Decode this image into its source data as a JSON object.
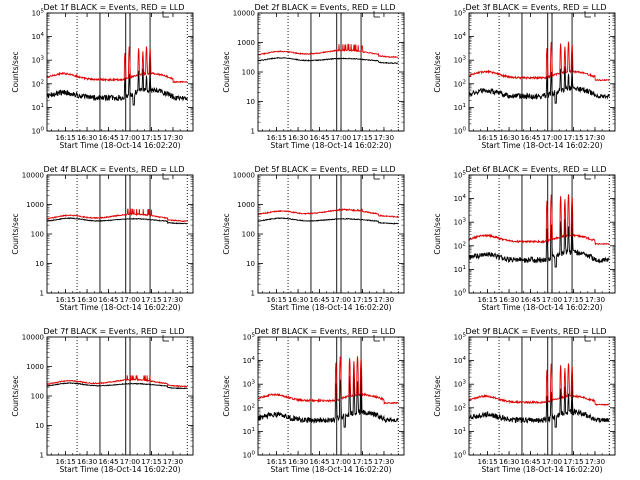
{
  "colors": {
    "events": "#000000",
    "lld": "#dd0000",
    "frame": "#000000",
    "background": "#ffffff"
  },
  "chart_data": [
    {
      "type": "line",
      "title": "Det 1f BLACK = Events, RED = LLD",
      "xlabel": "Start Time (18-Oct-14 16:02:20)",
      "ylabel": "Counts/sec",
      "xlim": [
        "16:02",
        "17:44"
      ],
      "xticks": [
        "16:15",
        "16:30",
        "16:45",
        "17:00",
        "17:15",
        "17:30"
      ],
      "yscale": "log",
      "ylim": [
        1,
        100000
      ],
      "yticks": [
        "10^0",
        "10^1",
        "10^2",
        "10^3",
        "10^4",
        "10^5"
      ],
      "profile": "spiky",
      "lld_baseline": 150,
      "lld_peak": 5000,
      "events_baseline": 25,
      "events_peak": 500,
      "solid_markers": [
        "16:39",
        "16:57",
        "17:00",
        "17:14"
      ],
      "dotted_markers": [
        "16:23",
        "17:40"
      ],
      "series": [
        {
          "name": "BLACK = Events",
          "color": "#000000"
        },
        {
          "name": "RED = LLD",
          "color": "#dd0000"
        }
      ]
    },
    {
      "type": "line",
      "title": "Det 2f BLACK = Events, RED = LLD",
      "xlabel": "Start Time (18-Oct-14 16:02:20)",
      "ylabel": "Counts/sec",
      "xlim": [
        "16:02",
        "17:44"
      ],
      "xticks": [
        "16:15",
        "16:30",
        "16:45",
        "17:00",
        "17:15",
        "17:30"
      ],
      "yscale": "log",
      "ylim": [
        1,
        10000
      ],
      "yticks": [
        "1",
        "10",
        "100",
        "1000",
        "10000"
      ],
      "profile": "smooth",
      "lld_baseline": 350,
      "lld_peak": 1100,
      "events_baseline": 220,
      "events_peak": 400,
      "solid_markers": [
        "16:39",
        "16:57",
        "17:00",
        "17:14"
      ],
      "dotted_markers": [
        "16:23",
        "17:40"
      ],
      "series": [
        {
          "name": "BLACK = Events",
          "color": "#000000"
        },
        {
          "name": "RED = LLD",
          "color": "#dd0000"
        }
      ]
    },
    {
      "type": "line",
      "title": "Det 3f BLACK = Events, RED = LLD",
      "xlabel": "Start Time (18-Oct-14 16:02:20)",
      "ylabel": "Counts/sec",
      "xlim": [
        "16:02",
        "17:44"
      ],
      "xticks": [
        "16:15",
        "16:30",
        "16:45",
        "17:00",
        "17:15",
        "17:30"
      ],
      "yscale": "log",
      "ylim": [
        1,
        100000
      ],
      "yticks": [
        "10^0",
        "10^1",
        "10^2",
        "10^3",
        "10^4",
        "10^5"
      ],
      "profile": "spiky",
      "lld_baseline": 180,
      "lld_peak": 8000,
      "events_baseline": 30,
      "events_peak": 600,
      "solid_markers": [
        "16:39",
        "16:57",
        "17:00",
        "17:14"
      ],
      "dotted_markers": [
        "16:23",
        "17:40"
      ],
      "series": [
        {
          "name": "BLACK = Events",
          "color": "#000000"
        },
        {
          "name": "RED = LLD",
          "color": "#dd0000"
        }
      ]
    },
    {
      "type": "line",
      "title": "Det 4f BLACK = Events, RED = LLD",
      "xlabel": "Start Time (18-Oct-14 16:02:20)",
      "ylabel": "Counts/sec",
      "xlim": [
        "16:02",
        "17:44"
      ],
      "xticks": [
        "16:15",
        "16:30",
        "16:45",
        "17:00",
        "17:15",
        "17:30"
      ],
      "yscale": "log",
      "ylim": [
        1,
        10000
      ],
      "yticks": [
        "1",
        "10",
        "100",
        "1000",
        "10000"
      ],
      "profile": "smooth",
      "lld_baseline": 300,
      "lld_peak": 700,
      "events_baseline": 250,
      "events_peak": 400,
      "solid_markers": [
        "16:39",
        "16:57",
        "17:00",
        "17:14"
      ],
      "dotted_markers": [
        "16:23",
        "17:40"
      ],
      "series": [
        {
          "name": "BLACK = Events",
          "color": "#000000"
        },
        {
          "name": "RED = LLD",
          "color": "#dd0000"
        }
      ]
    },
    {
      "type": "line",
      "title": "Det 5f BLACK = Events, RED = LLD",
      "xlabel": "Start Time (18-Oct-14 16:02:20)",
      "ylabel": "Counts/sec",
      "xlim": [
        "16:02",
        "17:44"
      ],
      "xticks": [
        "16:15",
        "16:30",
        "16:45",
        "17:00",
        "17:15",
        "17:30"
      ],
      "yscale": "log",
      "ylim": [
        1,
        10000
      ],
      "yticks": [
        "1",
        "10",
        "100",
        "1000",
        "10000"
      ],
      "profile": "smooth",
      "lld_baseline": 420,
      "lld_peak": 700,
      "events_baseline": 250,
      "events_peak": 350,
      "solid_markers": [
        "16:39",
        "16:57",
        "17:00",
        "17:14"
      ],
      "dotted_markers": [
        "16:23",
        "17:40"
      ],
      "series": [
        {
          "name": "BLACK = Events",
          "color": "#000000"
        },
        {
          "name": "RED = LLD",
          "color": "#dd0000"
        }
      ]
    },
    {
      "type": "line",
      "title": "Det 6f BLACK = Events, RED = LLD",
      "xlabel": "Start Time (18-Oct-14 16:02:20)",
      "ylabel": "Counts/sec",
      "xlim": [
        "16:02",
        "17:44"
      ],
      "xticks": [
        "16:15",
        "16:30",
        "16:45",
        "17:00",
        "17:15",
        "17:30"
      ],
      "yscale": "log",
      "ylim": [
        1,
        100000
      ],
      "yticks": [
        "10^0",
        "10^1",
        "10^2",
        "10^3",
        "10^4",
        "10^5"
      ],
      "profile": "spiky",
      "lld_baseline": 150,
      "lld_peak": 20000,
      "events_baseline": 25,
      "events_peak": 1500,
      "solid_markers": [
        "16:39",
        "16:57",
        "17:00",
        "17:14"
      ],
      "dotted_markers": [
        "16:23",
        "17:40"
      ],
      "series": [
        {
          "name": "BLACK = Events",
          "color": "#000000"
        },
        {
          "name": "RED = LLD",
          "color": "#dd0000"
        }
      ]
    },
    {
      "type": "line",
      "title": "Det 7f BLACK = Events, RED = LLD",
      "xlabel": "Start Time (18-Oct-14 16:02:20)",
      "ylabel": "Counts/sec",
      "xlim": [
        "16:02",
        "17:44"
      ],
      "xticks": [
        "16:15",
        "16:30",
        "16:45",
        "17:00",
        "17:15",
        "17:30"
      ],
      "yscale": "log",
      "ylim": [
        1,
        10000
      ],
      "yticks": [
        "1",
        "10",
        "100",
        "1000",
        "10000"
      ],
      "profile": "smooth",
      "lld_baseline": 230,
      "lld_peak": 500,
      "events_baseline": 200,
      "events_peak": 450,
      "solid_markers": [
        "16:39",
        "16:57",
        "17:00",
        "17:14"
      ],
      "dotted_markers": [
        "16:23",
        "17:40"
      ],
      "series": [
        {
          "name": "BLACK = Events",
          "color": "#000000"
        },
        {
          "name": "RED = LLD",
          "color": "#dd0000"
        }
      ]
    },
    {
      "type": "line",
      "title": "Det 8f BLACK = Events, RED = LLD",
      "xlabel": "Start Time (18-Oct-14 16:02:20)",
      "ylabel": "Counts/sec",
      "xlim": [
        "16:02",
        "17:44"
      ],
      "xticks": [
        "16:15",
        "16:30",
        "16:45",
        "17:00",
        "17:15",
        "17:30"
      ],
      "yscale": "log",
      "ylim": [
        1,
        100000
      ],
      "yticks": [
        "10^0",
        "10^1",
        "10^2",
        "10^3",
        "10^4",
        "10^5"
      ],
      "profile": "spiky",
      "lld_baseline": 200,
      "lld_peak": 20000,
      "events_baseline": 30,
      "events_peak": 3000,
      "solid_markers": [
        "16:39",
        "16:57",
        "17:00",
        "17:14"
      ],
      "dotted_markers": [
        "16:23",
        "17:40"
      ],
      "series": [
        {
          "name": "BLACK = Events",
          "color": "#000000"
        },
        {
          "name": "RED = LLD",
          "color": "#dd0000"
        }
      ]
    },
    {
      "type": "line",
      "title": "Det 9f BLACK = Events, RED = LLD",
      "xlabel": "Start Time (18-Oct-14 16:02:20)",
      "ylabel": "Counts/sec",
      "xlim": [
        "16:02",
        "17:44"
      ],
      "xticks": [
        "16:15",
        "16:30",
        "16:45",
        "17:00",
        "17:15",
        "17:30"
      ],
      "yscale": "log",
      "ylim": [
        1,
        100000
      ],
      "yticks": [
        "10^0",
        "10^1",
        "10^2",
        "10^3",
        "10^4",
        "10^5"
      ],
      "profile": "spiky",
      "lld_baseline": 170,
      "lld_peak": 10000,
      "events_baseline": 30,
      "events_peak": 900,
      "solid_markers": [
        "16:39",
        "16:57",
        "17:00",
        "17:14"
      ],
      "dotted_markers": [
        "16:23",
        "17:40"
      ],
      "series": [
        {
          "name": "BLACK = Events",
          "color": "#000000"
        },
        {
          "name": "RED = LLD",
          "color": "#dd0000"
        }
      ]
    }
  ]
}
